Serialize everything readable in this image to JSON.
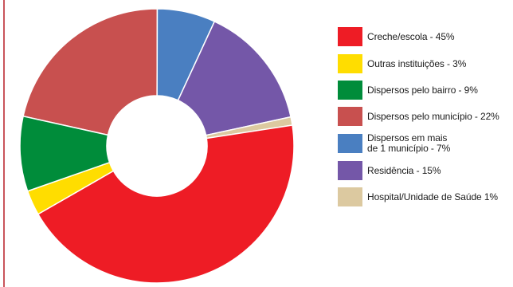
{
  "chart_data": {
    "type": "pie",
    "donut": true,
    "title": "",
    "slices": [
      {
        "label": "Creche/escola - 45%",
        "value": 45,
        "color": "#ee1c25"
      },
      {
        "label": "Outras instituições - 3%",
        "value": 3,
        "color": "#ffdd00"
      },
      {
        "label": "Dispersos pelo bairro - 9%",
        "value": 9,
        "color": "#008c3a"
      },
      {
        "label": "Dispersos pelo município - 22%",
        "value": 22,
        "color": "#c8504f"
      },
      {
        "label": "Dispersos em mais\nde 1 município - 7%",
        "value": 7,
        "color": "#4a7fc1"
      },
      {
        "label": "Residência - 15%",
        "value": 15,
        "color": "#7457a8"
      },
      {
        "label": "Hospital/Unidade de Saúde 1%",
        "value": 1,
        "color": "#dcc9a0"
      }
    ],
    "legend_position": "right"
  }
}
